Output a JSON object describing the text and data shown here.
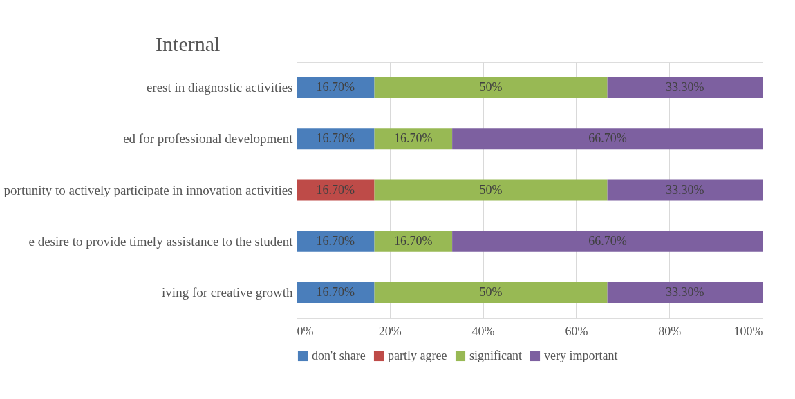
{
  "chart_data": {
    "type": "bar",
    "orientation": "horizontal",
    "stacked": true,
    "title": "Internal",
    "categories": [
      "erest in diagnostic activities",
      "ed for professional development",
      "portunity to actively participate in innovation activities",
      "e desire to provide timely assistance to the student",
      "iving for creative growth"
    ],
    "series": [
      {
        "name": "don't share",
        "color": "#4a7ebb",
        "values": [
          16.7,
          16.7,
          null,
          16.7,
          16.7
        ],
        "value_labels": [
          "16.70%",
          "16.70%",
          null,
          "16.70%",
          "16.70%"
        ]
      },
      {
        "name": "partly agree",
        "color": "#be4b48",
        "values": [
          null,
          null,
          16.7,
          null,
          null
        ],
        "value_labels": [
          null,
          null,
          "16.70%",
          null,
          null
        ]
      },
      {
        "name": "significant",
        "color": "#98b954",
        "values": [
          50,
          16.7,
          50,
          16.7,
          50
        ],
        "value_labels": [
          "50%",
          "16.70%",
          "50%",
          "16.70%",
          "50%"
        ]
      },
      {
        "name": "very important",
        "color": "#7d60a0",
        "values": [
          33.3,
          66.7,
          33.3,
          66.7,
          33.3
        ],
        "value_labels": [
          "33.30%",
          "66.70%",
          "33.30%",
          "66.70%",
          "33.30%"
        ]
      }
    ],
    "xlim": [
      0,
      100
    ],
    "xticks": [
      {
        "value": 0,
        "label": "0%"
      },
      {
        "value": 20,
        "label": "20%"
      },
      {
        "value": 40,
        "label": "40%"
      },
      {
        "value": 60,
        "label": "60%"
      },
      {
        "value": 80,
        "label": "80%"
      },
      {
        "value": 100,
        "label": "100%"
      }
    ],
    "grid": "x",
    "legend": "bottom"
  }
}
